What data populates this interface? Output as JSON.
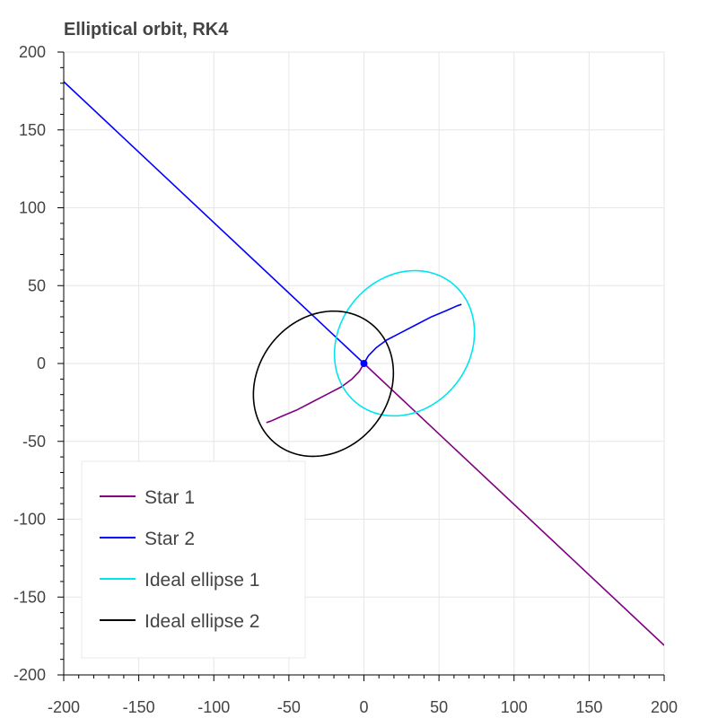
{
  "chart_data": {
    "type": "line",
    "title": "Elliptical orbit, RK4",
    "xlabel": "",
    "ylabel": "",
    "xlim": [
      -200,
      200
    ],
    "ylim": [
      -200,
      200
    ],
    "x_ticks": [
      -200,
      -150,
      -100,
      -50,
      0,
      50,
      100,
      150,
      200
    ],
    "y_ticks": [
      -200,
      -150,
      -100,
      -50,
      0,
      50,
      100,
      150,
      200
    ],
    "grid": true,
    "legend_position": "bottom-left",
    "series": [
      {
        "name": "Star 1",
        "color": "#800080",
        "kind": "path",
        "x": [
          0,
          -3,
          -8,
          -15,
          -25,
          -35,
          -45,
          -55,
          -62,
          -65
        ],
        "y": [
          0,
          -5,
          -10,
          -15,
          -20,
          -25,
          -30,
          -34,
          -37,
          -38
        ]
      },
      {
        "name": "Star 1",
        "color": "#800080",
        "kind": "path",
        "x": [
          0,
          200
        ],
        "y": [
          0,
          -181
        ]
      },
      {
        "name": "Star 2",
        "color": "#0000ff",
        "kind": "path",
        "x": [
          0,
          3,
          8,
          15,
          25,
          35,
          45,
          55,
          62,
          65
        ],
        "y": [
          0,
          5,
          10,
          15,
          20,
          25,
          30,
          34,
          37,
          38
        ]
      },
      {
        "name": "Star 2",
        "color": "#0000ff",
        "kind": "path",
        "x": [
          0,
          -200
        ],
        "y": [
          0,
          181
        ]
      },
      {
        "name": "Ideal ellipse 1",
        "color": "#00e5ee",
        "kind": "ellipse",
        "cx": 27,
        "cy": 13,
        "rx": 50,
        "ry": 43,
        "angle_deg": 45
      },
      {
        "name": "Ideal ellipse 2",
        "color": "#000000",
        "kind": "ellipse",
        "cx": -27,
        "cy": -13,
        "rx": 50,
        "ry": 43,
        "angle_deg": 45
      }
    ],
    "legend": [
      {
        "label": "Star 1",
        "color": "#800080"
      },
      {
        "label": "Star 2",
        "color": "#0000ff"
      },
      {
        "label": "Ideal ellipse 1",
        "color": "#00e5ee"
      },
      {
        "label": "Ideal ellipse 2",
        "color": "#000000"
      }
    ],
    "markers": [
      {
        "x": 0,
        "y": 0,
        "color": "#0000ff"
      }
    ]
  }
}
